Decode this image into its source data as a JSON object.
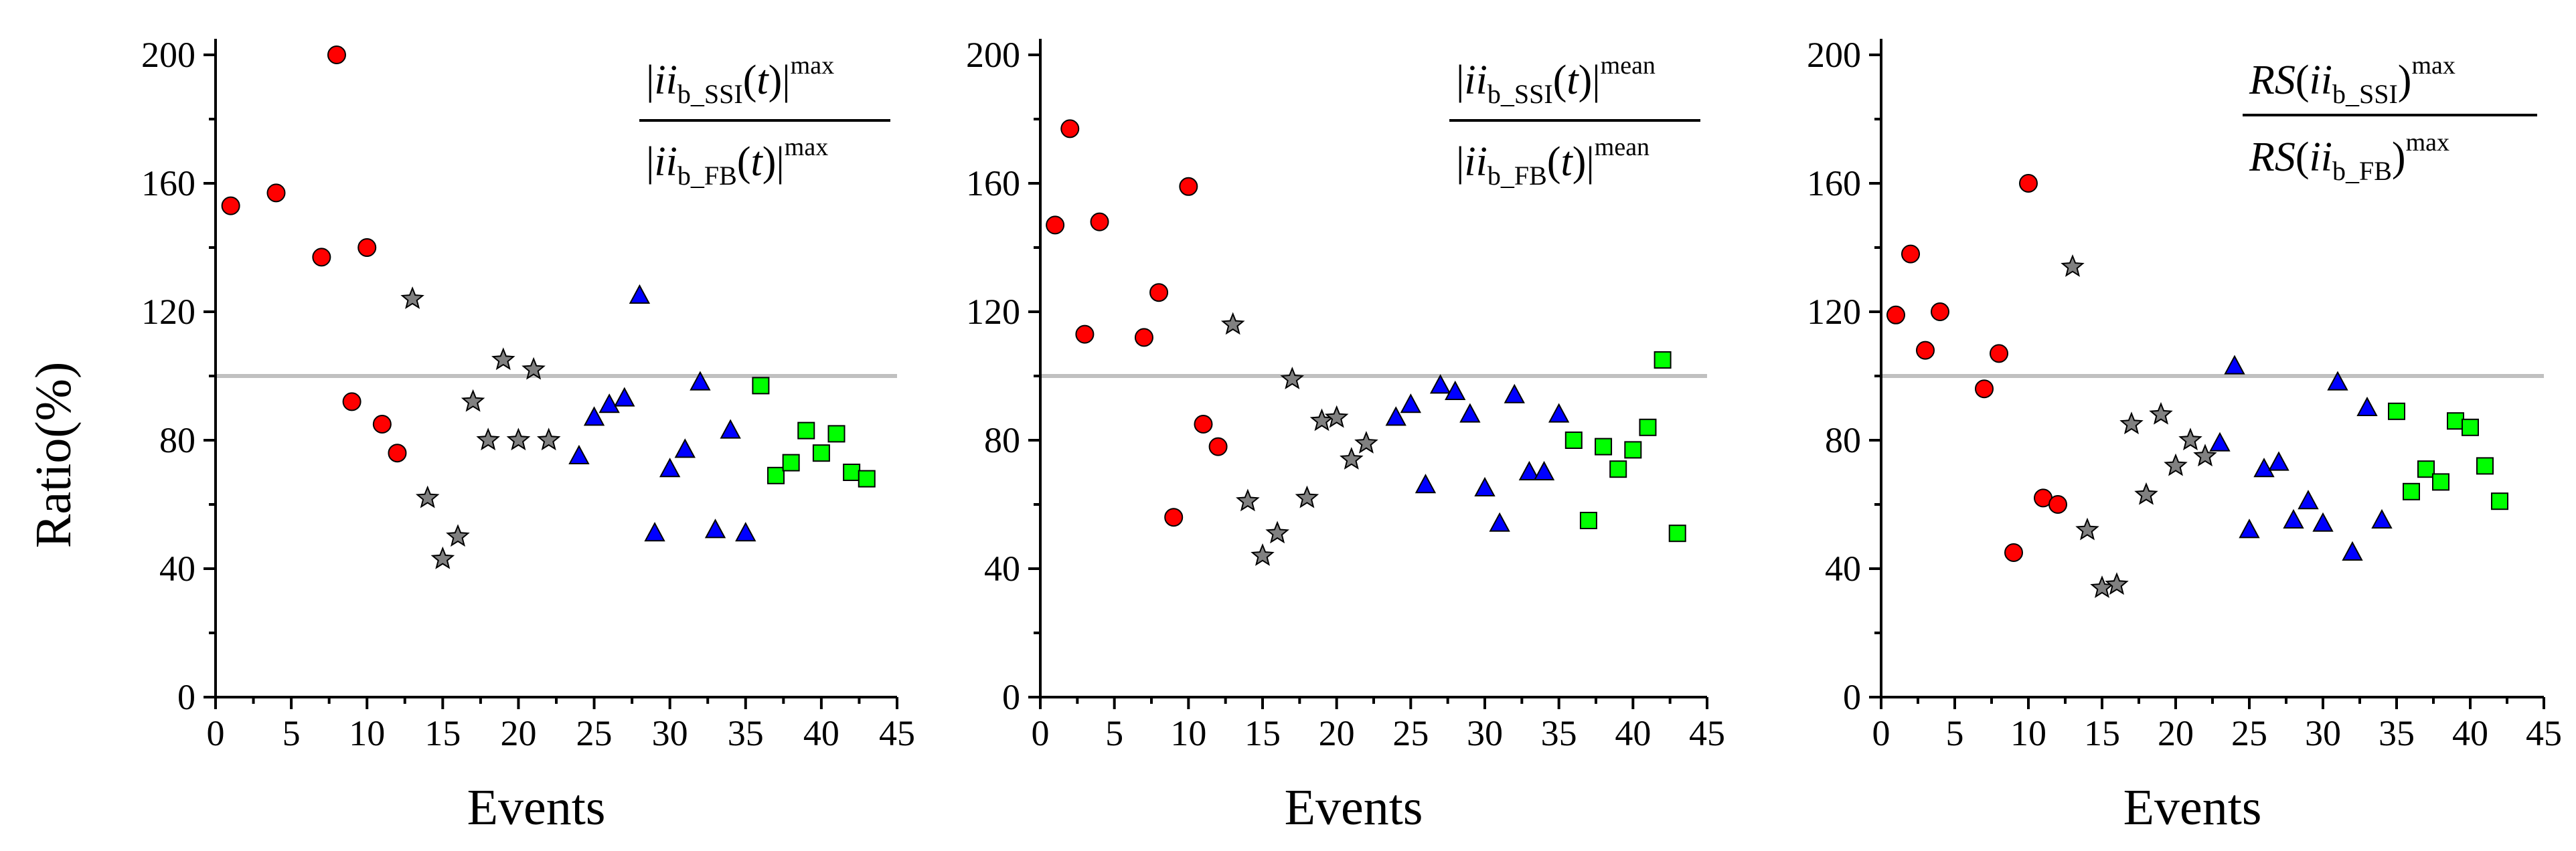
{
  "chart_data": [
    {
      "type": "scatter",
      "ylabel": "Ratio(%)",
      "xlabel": "Events",
      "formula": {
        "kind": "abs",
        "base": "ii",
        "num_sub": "b_SSI",
        "den_sub": "b_FB",
        "var": "t",
        "sup": "max"
      },
      "xlim": [
        0,
        45
      ],
      "ylim": [
        0,
        205
      ],
      "xticks": [
        0,
        5,
        10,
        15,
        20,
        25,
        30,
        35,
        40,
        45
      ],
      "yticks": [
        0,
        40,
        80,
        120,
        160,
        200
      ],
      "reference_line": 100,
      "series": [
        {
          "name": "red",
          "marker": "circle",
          "color": "#ff0000",
          "points": [
            [
              1,
              153
            ],
            [
              4,
              157
            ],
            [
              7,
              137
            ],
            [
              8,
              200
            ],
            [
              9,
              92
            ],
            [
              10,
              140
            ],
            [
              11,
              85
            ],
            [
              12,
              76
            ]
          ]
        },
        {
          "name": "gray",
          "marker": "star",
          "color": "#808080",
          "points": [
            [
              13,
              124
            ],
            [
              14,
              62
            ],
            [
              15,
              43
            ],
            [
              16,
              50
            ],
            [
              17,
              92
            ],
            [
              18,
              80
            ],
            [
              19,
              105
            ],
            [
              20,
              80
            ],
            [
              21,
              102
            ],
            [
              22,
              80
            ]
          ]
        },
        {
          "name": "blue",
          "marker": "triangle",
          "color": "#0000ff",
          "points": [
            [
              24,
              75
            ],
            [
              25,
              87
            ],
            [
              26,
              91
            ],
            [
              27,
              93
            ],
            [
              28,
              125
            ],
            [
              29,
              51
            ],
            [
              30,
              71
            ],
            [
              31,
              77
            ],
            [
              32,
              98
            ],
            [
              33,
              52
            ],
            [
              34,
              83
            ],
            [
              35,
              51
            ]
          ]
        },
        {
          "name": "green",
          "marker": "square",
          "color": "#00ff00",
          "points": [
            [
              36,
              97
            ],
            [
              37,
              69
            ],
            [
              38,
              73
            ],
            [
              39,
              83
            ],
            [
              40,
              76
            ],
            [
              41,
              82
            ],
            [
              42,
              70
            ],
            [
              43,
              68
            ]
          ]
        }
      ]
    },
    {
      "type": "scatter",
      "ylabel": "",
      "xlabel": "Events",
      "formula": {
        "kind": "abs",
        "base": "ii",
        "num_sub": "b_SSI",
        "den_sub": "b_FB",
        "var": "t",
        "sup": "mean"
      },
      "xlim": [
        0,
        45
      ],
      "ylim": [
        0,
        205
      ],
      "xticks": [
        0,
        5,
        10,
        15,
        20,
        25,
        30,
        35,
        40,
        45
      ],
      "yticks": [
        0,
        40,
        80,
        120,
        160,
        200
      ],
      "reference_line": 100,
      "series": [
        {
          "name": "red",
          "marker": "circle",
          "color": "#ff0000",
          "points": [
            [
              1,
              147
            ],
            [
              2,
              177
            ],
            [
              3,
              113
            ],
            [
              4,
              148
            ],
            [
              7,
              112
            ],
            [
              8,
              126
            ],
            [
              9,
              56
            ],
            [
              10,
              159
            ],
            [
              11,
              85
            ],
            [
              12,
              78
            ]
          ]
        },
        {
          "name": "gray",
          "marker": "star",
          "color": "#808080",
          "points": [
            [
              13,
              116
            ],
            [
              14,
              61
            ],
            [
              15,
              44
            ],
            [
              16,
              51
            ],
            [
              17,
              99
            ],
            [
              18,
              62
            ],
            [
              19,
              86
            ],
            [
              20,
              87
            ],
            [
              21,
              74
            ],
            [
              22,
              79
            ]
          ]
        },
        {
          "name": "blue",
          "marker": "triangle",
          "color": "#0000ff",
          "points": [
            [
              24,
              87
            ],
            [
              25,
              91
            ],
            [
              26,
              66
            ],
            [
              27,
              97
            ],
            [
              28,
              95
            ],
            [
              29,
              88
            ],
            [
              30,
              65
            ],
            [
              31,
              54
            ],
            [
              32,
              94
            ],
            [
              33,
              70
            ],
            [
              34,
              70
            ],
            [
              35,
              88
            ]
          ]
        },
        {
          "name": "green",
          "marker": "square",
          "color": "#00ff00",
          "points": [
            [
              36,
              80
            ],
            [
              37,
              55
            ],
            [
              38,
              78
            ],
            [
              39,
              71
            ],
            [
              40,
              77
            ],
            [
              41,
              84
            ],
            [
              42,
              105
            ],
            [
              43,
              51
            ]
          ]
        }
      ]
    },
    {
      "type": "scatter",
      "ylabel": "",
      "xlabel": "Events",
      "formula": {
        "kind": "rs",
        "prefix": "RS",
        "base": "ii",
        "num_sub": "b_SSI",
        "den_sub": "b_FB",
        "sup": "max"
      },
      "xlim": [
        0,
        45
      ],
      "ylim": [
        0,
        205
      ],
      "xticks": [
        0,
        5,
        10,
        15,
        20,
        25,
        30,
        35,
        40,
        45
      ],
      "yticks": [
        0,
        40,
        80,
        120,
        160,
        200
      ],
      "reference_line": 100,
      "series": [
        {
          "name": "red",
          "marker": "circle",
          "color": "#ff0000",
          "points": [
            [
              1,
              119
            ],
            [
              2,
              138
            ],
            [
              3,
              108
            ],
            [
              4,
              120
            ],
            [
              7,
              96
            ],
            [
              8,
              107
            ],
            [
              9,
              45
            ],
            [
              10,
              160
            ],
            [
              11,
              62
            ],
            [
              12,
              60
            ]
          ]
        },
        {
          "name": "gray",
          "marker": "star",
          "color": "#808080",
          "points": [
            [
              13,
              134
            ],
            [
              14,
              52
            ],
            [
              15,
              34
            ],
            [
              16,
              35
            ],
            [
              17,
              85
            ],
            [
              18,
              63
            ],
            [
              19,
              88
            ],
            [
              20,
              72
            ],
            [
              21,
              80
            ],
            [
              22,
              75
            ]
          ]
        },
        {
          "name": "blue",
          "marker": "triangle",
          "color": "#0000ff",
          "points": [
            [
              23,
              79
            ],
            [
              24,
              103
            ],
            [
              25,
              52
            ],
            [
              26,
              71
            ],
            [
              27,
              73
            ],
            [
              28,
              55
            ],
            [
              29,
              61
            ],
            [
              30,
              54
            ],
            [
              31,
              98
            ],
            [
              32,
              45
            ],
            [
              33,
              90
            ],
            [
              34,
              55
            ]
          ]
        },
        {
          "name": "green",
          "marker": "square",
          "color": "#00ff00",
          "points": [
            [
              35,
              89
            ],
            [
              36,
              64
            ],
            [
              37,
              71
            ],
            [
              38,
              67
            ],
            [
              39,
              86
            ],
            [
              40,
              84
            ],
            [
              41,
              72
            ],
            [
              42,
              61
            ]
          ]
        }
      ]
    }
  ]
}
